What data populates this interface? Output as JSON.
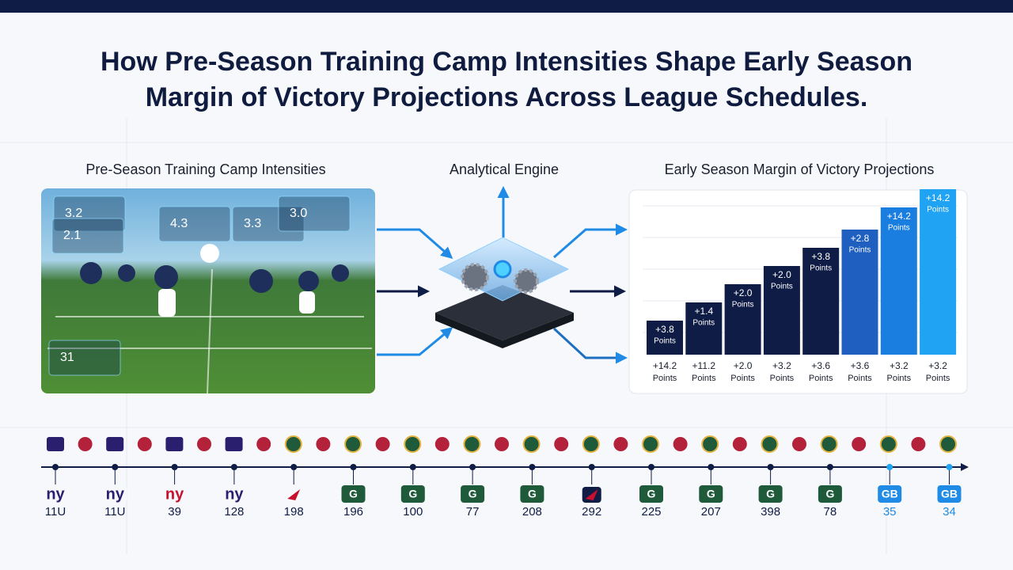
{
  "header": {
    "title_line1": "How Pre-Season Training Camp Intensities Shape Early Season",
    "title_line2": "Margin of Victory Projections Across League Schedules."
  },
  "sections": {
    "left": "Pre-Season Training Camp Intensities",
    "middle": "Analytical Engine",
    "right": "Early Season Margin of Victory Projections"
  },
  "hud": [
    "3.2",
    "2.1",
    "4.3",
    "3.3",
    "3.0",
    "31"
  ],
  "bars": [
    {
      "top": "+3.8",
      "top_unit": "Points",
      "bottom": "+14.2",
      "bottom_unit": "Points"
    },
    {
      "top": "+1.4",
      "top_unit": "Points",
      "bottom": "+11.2",
      "bottom_unit": "Points"
    },
    {
      "top": "+2.0",
      "top_unit": "Points",
      "bottom": "+2.0",
      "bottom_unit": "Points"
    },
    {
      "top": "+2.0",
      "top_unit": "Points",
      "bottom": "+3.2",
      "bottom_unit": "Points"
    },
    {
      "top": "+3.8",
      "top_unit": "Points",
      "bottom": "+3.6",
      "bottom_unit": "Points"
    },
    {
      "top": "+2.8",
      "top_unit": "Points",
      "bottom": "+3.6",
      "bottom_unit": "Points"
    },
    {
      "top": "+14.2",
      "top_unit": "Points",
      "bottom": "+3.2",
      "bottom_unit": "Points"
    },
    {
      "top": "+14.2",
      "top_unit": "Points",
      "bottom": "+3.2",
      "bottom_unit": "Points"
    }
  ],
  "timeline": [
    {
      "logo": "ny",
      "label": "11U"
    },
    {
      "logo": "ny",
      "label": "11U"
    },
    {
      "logo": "ny",
      "label": "39"
    },
    {
      "logo": "ny",
      "label": "128"
    },
    {
      "label": "198"
    },
    {
      "logo": "G",
      "label": "196"
    },
    {
      "logo": "G",
      "label": "100"
    },
    {
      "logo": "G",
      "label": "77"
    },
    {
      "logo": "G",
      "label": "208"
    },
    {
      "label": "292"
    },
    {
      "logo": "G",
      "label": "225"
    },
    {
      "logo": "G",
      "label": "207"
    },
    {
      "logo": "G",
      "label": "398"
    },
    {
      "logo": "G",
      "label": "78"
    },
    {
      "logo": "GB",
      "label": "35"
    },
    {
      "logo": "GB",
      "label": "34"
    }
  ]
}
